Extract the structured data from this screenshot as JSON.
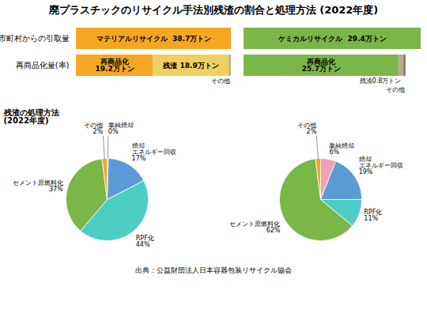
{
  "chart_data": [
    {
      "type": "bar",
      "orientation": "horizontal",
      "stacked": true,
      "title": "廃プラスチックのリサイクル手法別残渣の割合と処理方法 (2022年度)",
      "categories": [
        "市町村からの引取量",
        "再商品化量(率)"
      ],
      "series": [
        {
          "name": "マテリアルリサイクル  38.7万トン",
          "color": "#f5a623",
          "values": [
            38.7,
            null
          ]
        },
        {
          "name": "再商品化\n19.2万トン",
          "color": "#f5a623",
          "values": [
            null,
            19.2
          ]
        },
        {
          "name": "残渣 18.9万トン",
          "color": "#f0d060",
          "values": [
            null,
            18.9
          ]
        },
        {
          "name": "その他",
          "color": "#c8b888",
          "values": [
            null,
            0.6
          ]
        }
      ],
      "xlim": [
        0,
        38.7
      ],
      "tick_labels": "y"
    },
    {
      "type": "bar",
      "orientation": "horizontal",
      "stacked": true,
      "categories": [
        "市町村からの引取量",
        "再商品化量(率)"
      ],
      "series": [
        {
          "name": "ケミカルリサイクル  29.4万トン",
          "color": "#7ab648",
          "values": [
            29.4,
            null
          ]
        },
        {
          "name": "再商品化\n25.7万トン",
          "color": "#7ab648",
          "values": [
            null,
            25.7
          ]
        },
        {
          "name": "残渣0.8万トン",
          "color": "#b8aa90",
          "values": [
            null,
            0.8
          ]
        },
        {
          "name": "その他",
          "color": "#908070",
          "values": [
            null,
            0.4
          ]
        }
      ],
      "xlim": [
        0,
        29.4
      ],
      "tick_labels": false
    },
    {
      "type": "pie",
      "title": "残渣の処理方法\n(2022年度)",
      "categories": [
        "単純焼却",
        "焼却\nエネルギー回収",
        "RPF化",
        "セメント原燃料化",
        "その他"
      ],
      "values": [
        0.5,
        17,
        44,
        37,
        2
      ],
      "value_labels": [
        "0%",
        "17%",
        "44%",
        "37%",
        "2%"
      ],
      "colors": [
        "#e8b8c8",
        "#5b9bd5",
        "#4ecdc4",
        "#7ab648",
        "#f5a623"
      ],
      "data_labels": true
    },
    {
      "type": "pie",
      "categories": [
        "単純焼却",
        "焼却\nエネルギー回収",
        "RPF化",
        "セメント原燃料化",
        "その他"
      ],
      "values": [
        6,
        19,
        11,
        62,
        2
      ],
      "value_labels": [
        "6%",
        "19%",
        "11%",
        "62%",
        "2%"
      ],
      "colors": [
        "#f0a0b8",
        "#5b9bd5",
        "#4ecdc4",
        "#7ab648",
        "#f5a623"
      ],
      "data_labels": true,
      "annotations": [
        "出典：公益財団法人日本容器包装リサイクル協会"
      ]
    }
  ]
}
